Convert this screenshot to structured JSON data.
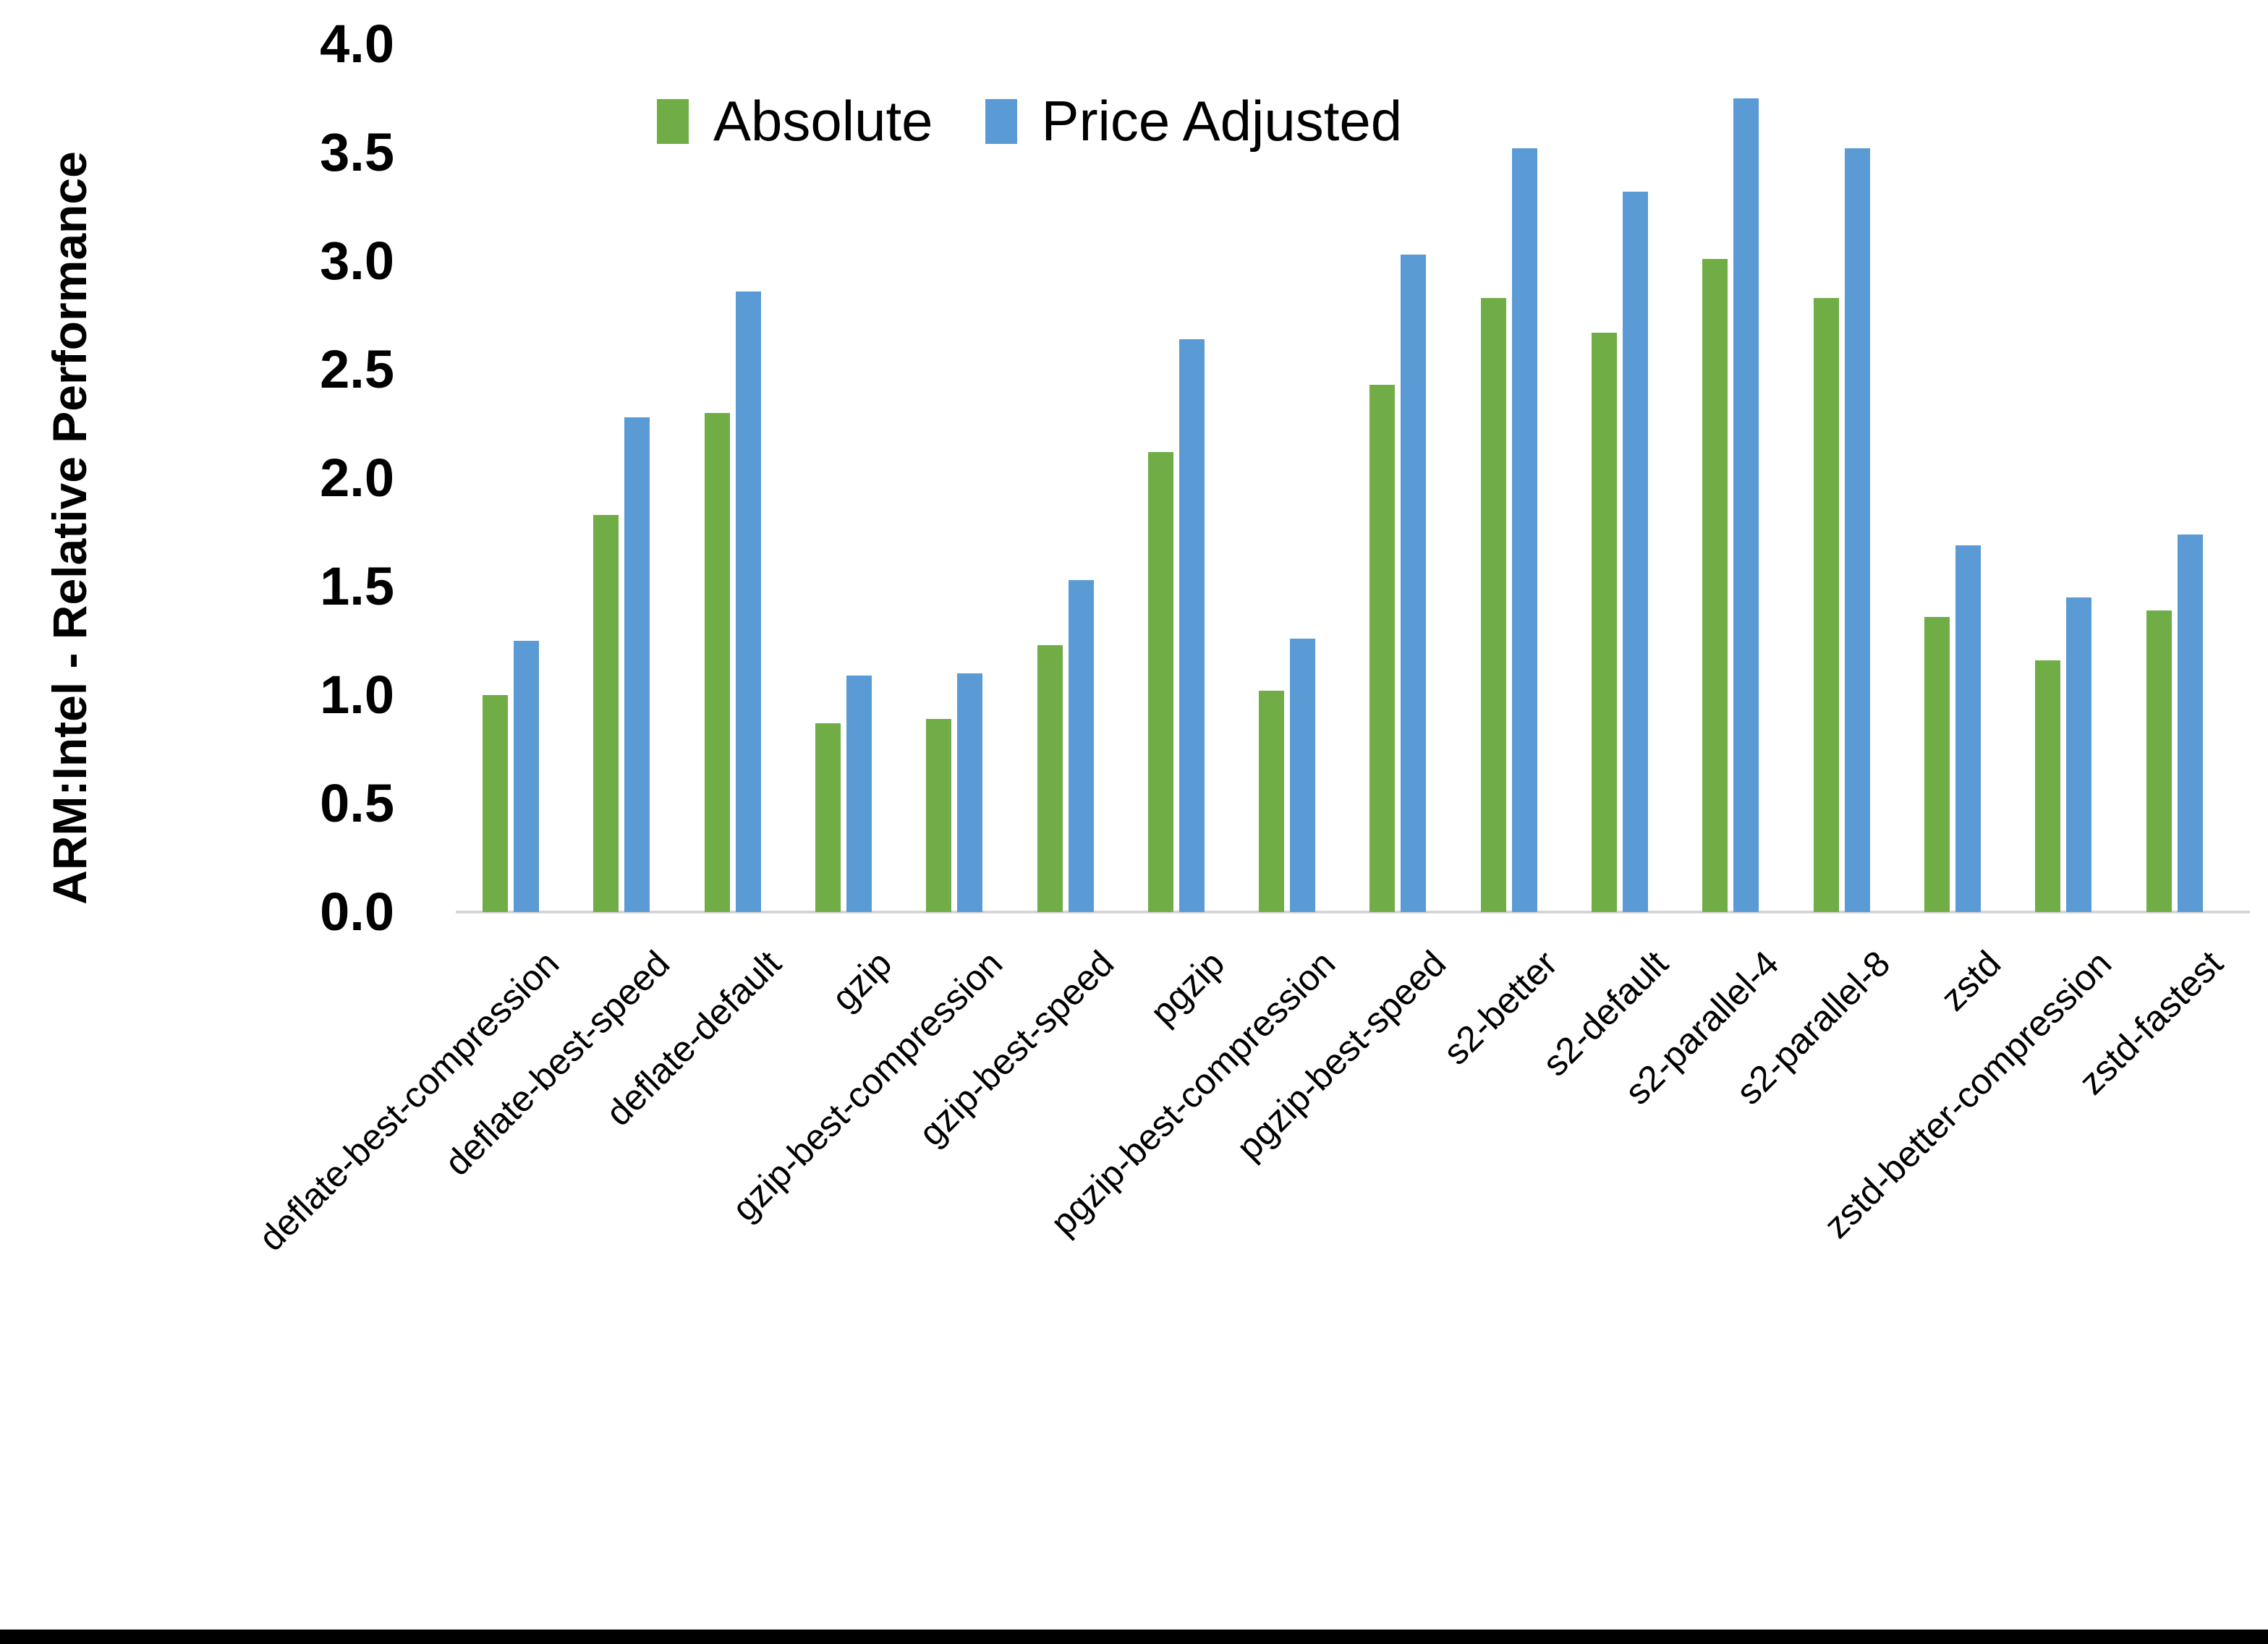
{
  "chart_data": {
    "type": "bar",
    "title": "",
    "xlabel": "",
    "ylabel": "ARM:Intel - Relative Performance",
    "ylim": [
      0.0,
      4.0
    ],
    "ytick_step": 0.5,
    "ytick_labels": [
      "0.0",
      "0.5",
      "1.0",
      "1.5",
      "2.0",
      "2.5",
      "3.0",
      "3.5",
      "4.0"
    ],
    "grid": false,
    "legend_position": "top-center",
    "categories": [
      "deflate-best-compression",
      "deflate-best-speed",
      "deflate-default",
      "gzip",
      "gzip-best-compression",
      "gzip-best-speed",
      "pgzip",
      "pgzip-best-compression",
      "pgzip-best-speed",
      "s2-better",
      "s2-default",
      "s2-parallel-4",
      "s2-parallel-8",
      "zstd",
      "zstd-better-compression",
      "zstd-fastest"
    ],
    "series": [
      {
        "name": "Absolute",
        "color": "#70AD47",
        "values": [
          1.0,
          1.83,
          2.3,
          0.87,
          0.89,
          1.23,
          2.12,
          1.02,
          2.43,
          2.83,
          2.67,
          3.01,
          2.83,
          1.36,
          1.16,
          1.39
        ]
      },
      {
        "name": "Price Adjusted",
        "color": "#5B9BD5",
        "values": [
          1.25,
          2.28,
          2.86,
          1.09,
          1.1,
          1.53,
          2.64,
          1.26,
          3.03,
          3.52,
          3.32,
          3.75,
          3.52,
          1.69,
          1.45,
          1.74
        ]
      }
    ]
  },
  "style_colors": {
    "axis_line": "#d6d6d6",
    "text": "#000000",
    "background": "#ffffff",
    "bottom_border": "#000000"
  }
}
